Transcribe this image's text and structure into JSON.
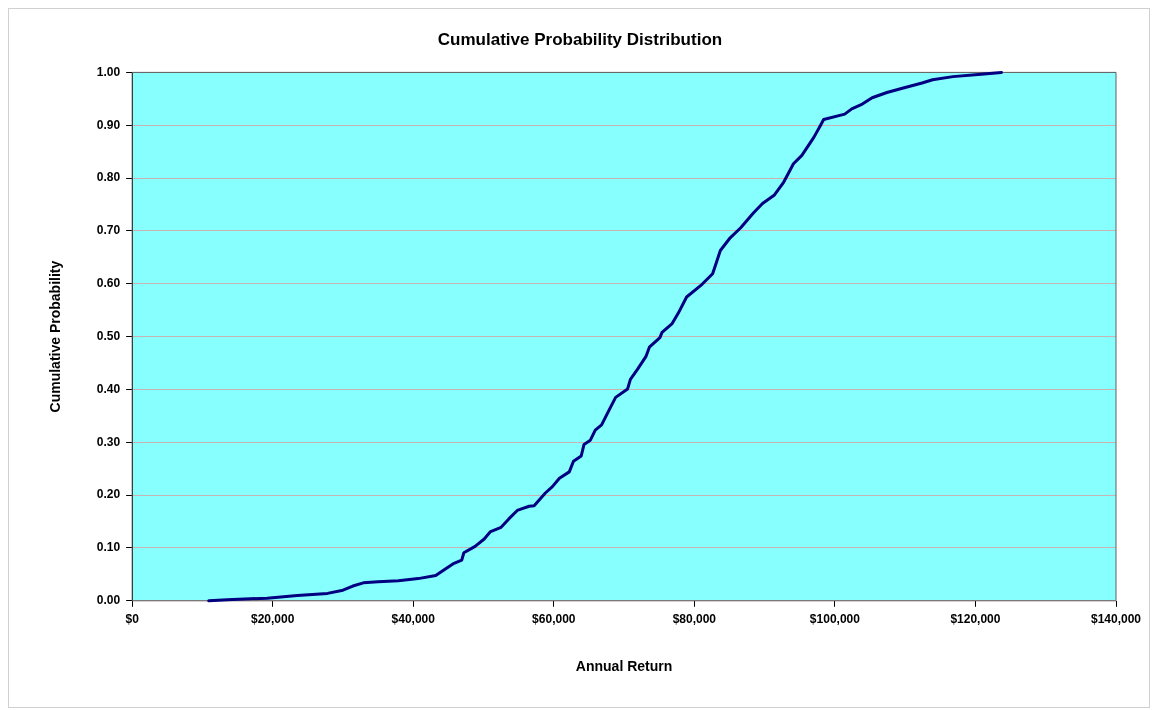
{
  "chart_data": {
    "type": "line",
    "title": "Cumulative Probability Distribution",
    "xlabel": "Annual Return",
    "ylabel": "Cumulative Probability",
    "xlim": [
      0,
      140000
    ],
    "xticks": [
      {
        "value": 0,
        "label": "$0"
      },
      {
        "value": 20000,
        "label": "$20,000"
      },
      {
        "value": 40000,
        "label": "$40,000"
      },
      {
        "value": 60000,
        "label": "$60,000"
      },
      {
        "value": 80000,
        "label": "$80,000"
      },
      {
        "value": 100000,
        "label": "$100,000"
      },
      {
        "value": 120000,
        "label": "$120,000"
      },
      {
        "value": 140000,
        "label": "$140,000"
      }
    ],
    "ylim": [
      0,
      1
    ],
    "yticks": [
      {
        "value": 0,
        "label": "0.00"
      },
      {
        "value": 0.1,
        "label": "0.10"
      },
      {
        "value": 0.2,
        "label": "0.20"
      },
      {
        "value": 0.3,
        "label": "0.30"
      },
      {
        "value": 0.4,
        "label": "0.40"
      },
      {
        "value": 0.5,
        "label": "0.50"
      },
      {
        "value": 0.6,
        "label": "0.60"
      },
      {
        "value": 0.7,
        "label": "0.70"
      },
      {
        "value": 0.8,
        "label": "0.80"
      },
      {
        "value": 0.9,
        "label": "0.90"
      },
      {
        "value": 1,
        "label": "1.00"
      }
    ],
    "grid": "y",
    "legend": false,
    "marker": "none",
    "line_style": "solid",
    "series": [
      {
        "color": "#000080",
        "x": [
          10900,
          13500,
          19200,
          23500,
          27800,
          30000,
          31400,
          32900,
          35000,
          37900,
          40700,
          43200,
          44300,
          45800,
          46900,
          47200,
          48800,
          50100,
          51000,
          52500,
          53600,
          54800,
          56500,
          57200,
          58800,
          59800,
          60800,
          62200,
          62800,
          63900,
          64300,
          65200,
          65900,
          66800,
          68100,
          68800,
          70500,
          70900,
          71900,
          73100,
          73600,
          75100,
          75400,
          76800,
          77700,
          78900,
          81100,
          82600,
          83100,
          83700,
          85100,
          86600,
          88400,
          89700,
          91400,
          92700,
          93500,
          94100,
          95300,
          97000,
          98000,
          98400,
          101400,
          102400,
          103900,
          105300,
          107400,
          109600,
          112400,
          113900,
          116800,
          120400,
          123700
        ],
        "values": [
          0,
          0.002,
          0.005,
          0.01,
          0.014,
          0.02,
          0.028,
          0.034,
          0.036,
          0.038,
          0.042,
          0.048,
          0.058,
          0.071,
          0.077,
          0.091,
          0.103,
          0.117,
          0.131,
          0.139,
          0.155,
          0.171,
          0.179,
          0.18,
          0.204,
          0.216,
          0.232,
          0.244,
          0.264,
          0.274,
          0.296,
          0.304,
          0.323,
          0.333,
          0.367,
          0.385,
          0.401,
          0.419,
          0.438,
          0.462,
          0.48,
          0.498,
          0.508,
          0.524,
          0.544,
          0.575,
          0.599,
          0.619,
          0.639,
          0.663,
          0.687,
          0.706,
          0.734,
          0.752,
          0.768,
          0.792,
          0.812,
          0.827,
          0.843,
          0.877,
          0.901,
          0.911,
          0.921,
          0.931,
          0.94,
          0.952,
          0.962,
          0.97,
          0.98,
          0.986,
          0.992,
          0.996,
          1
        ]
      }
    ]
  }
}
